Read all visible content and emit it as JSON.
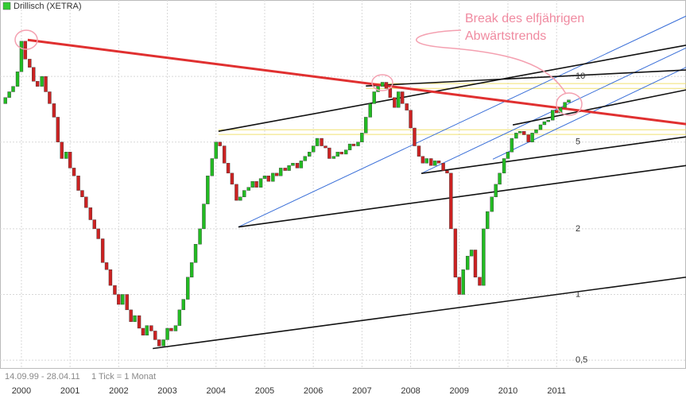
{
  "chart_data": {
    "type": "candlestick",
    "legend": "Drillisch (XETRA)",
    "legend_color": "#33cc33",
    "annotation": [
      "Break des elfjährigen",
      "Abwärtstrends"
    ],
    "footer": [
      "14.09.99 - 28.04.11",
      "1 Tick = 1 Monat"
    ],
    "log_scale": true,
    "grid": true,
    "up_color": "#22bb22",
    "down_color": "#cc2222",
    "xlim": [
      1999.56,
      2013.66
    ],
    "xticks": [
      2000,
      2001,
      2002,
      2003,
      2004,
      2005,
      2006,
      2007,
      2008,
      2009,
      2010,
      2011
    ],
    "ylim": [
      0.46,
      20.6
    ],
    "yticks": [
      {
        "value": 0.5,
        "label": "0,5"
      },
      1,
      2,
      5,
      10
    ],
    "x": [
      1999.67,
      1999.75,
      1999.83,
      1999.92,
      2000,
      2000.08,
      2000.17,
      2000.25,
      2000.33,
      2000.42,
      2000.5,
      2000.58,
      2000.67,
      2000.75,
      2000.83,
      2000.92,
      2001,
      2001.08,
      2001.17,
      2001.25,
      2001.33,
      2001.42,
      2001.5,
      2001.58,
      2001.67,
      2001.75,
      2001.83,
      2001.92,
      2002,
      2002.08,
      2002.17,
      2002.25,
      2002.33,
      2002.42,
      2002.5,
      2002.58,
      2002.67,
      2002.75,
      2002.83,
      2002.92,
      2003,
      2003.08,
      2003.17,
      2003.25,
      2003.33,
      2003.42,
      2003.5,
      2003.58,
      2003.67,
      2003.75,
      2003.83,
      2003.92,
      2004,
      2004.08,
      2004.17,
      2004.25,
      2004.33,
      2004.42,
      2004.5,
      2004.58,
      2004.67,
      2004.75,
      2004.83,
      2004.92,
      2005,
      2005.08,
      2005.17,
      2005.25,
      2005.33,
      2005.42,
      2005.5,
      2005.58,
      2005.67,
      2005.75,
      2005.83,
      2005.92,
      2006,
      2006.08,
      2006.17,
      2006.25,
      2006.33,
      2006.42,
      2006.5,
      2006.58,
      2006.67,
      2006.75,
      2006.83,
      2006.92,
      2007,
      2007.08,
      2007.17,
      2007.25,
      2007.33,
      2007.42,
      2007.5,
      2007.58,
      2007.67,
      2007.75,
      2007.83,
      2007.92,
      2008,
      2008.08,
      2008.17,
      2008.25,
      2008.33,
      2008.42,
      2008.5,
      2008.58,
      2008.67,
      2008.75,
      2008.83,
      2008.92,
      2009,
      2009.08,
      2009.17,
      2009.25,
      2009.33,
      2009.42,
      2009.5,
      2009.58,
      2009.67,
      2009.75,
      2009.83,
      2009.92,
      2010,
      2010.08,
      2010.17,
      2010.25,
      2010.33,
      2010.42,
      2010.5,
      2010.58,
      2010.67,
      2010.75,
      2010.83,
      2010.92,
      2011,
      2011.08,
      2011.17,
      2011.25
    ],
    "open": [
      7.5,
      8.0,
      8.5,
      9.0,
      10.5,
      14.5,
      12.0,
      11.0,
      9.5,
      9.0,
      10.0,
      8.5,
      7.5,
      6.5,
      5.0,
      4.2,
      4.5,
      3.8,
      3.5,
      3.0,
      2.8,
      2.5,
      2.2,
      2.0,
      1.8,
      1.4,
      1.3,
      1.1,
      1.0,
      0.9,
      1.0,
      0.85,
      0.75,
      0.8,
      0.7,
      0.65,
      0.72,
      0.68,
      0.62,
      0.58,
      0.62,
      0.7,
      0.68,
      0.72,
      0.85,
      0.95,
      1.2,
      1.4,
      1.7,
      2.0,
      2.6,
      3.5,
      4.2,
      5.0,
      4.8,
      4.0,
      3.6,
      3.2,
      2.7,
      2.8,
      3.0,
      3.1,
      3.3,
      3.1,
      3.4,
      3.5,
      3.3,
      3.6,
      3.5,
      3.8,
      3.7,
      3.9,
      4.0,
      3.8,
      4.1,
      4.3,
      4.5,
      4.8,
      5.2,
      4.8,
      4.7,
      4.2,
      4.3,
      4.5,
      4.4,
      4.6,
      4.9,
      4.8,
      5.0,
      5.5,
      6.5,
      7.5,
      8.5,
      9.0,
      9.4,
      8.8,
      8.0,
      7.2,
      8.5,
      7.5,
      7.0,
      5.8,
      4.8,
      4.3,
      4.0,
      4.2,
      3.9,
      4.1,
      4.0,
      3.7,
      3.6,
      2.0,
      1.2,
      1.0,
      1.3,
      1.5,
      1.6,
      1.2,
      1.1,
      2.0,
      2.4,
      2.8,
      3.2,
      3.6,
      4.2,
      4.5,
      5.2,
      5.5,
      5.6,
      5.4,
      5.0,
      5.5,
      5.7,
      6.0,
      6.2,
      6.3,
      7.0,
      6.8,
      7.2,
      7.6
    ],
    "close": [
      8.0,
      8.5,
      9.0,
      10.5,
      14.5,
      12.0,
      11.0,
      9.5,
      9.0,
      10.0,
      8.5,
      7.5,
      6.5,
      5.0,
      4.2,
      4.5,
      3.8,
      3.5,
      3.0,
      2.8,
      2.5,
      2.2,
      2.0,
      1.8,
      1.4,
      1.3,
      1.1,
      1.0,
      0.9,
      1.0,
      0.85,
      0.75,
      0.8,
      0.7,
      0.65,
      0.72,
      0.68,
      0.62,
      0.58,
      0.62,
      0.7,
      0.68,
      0.72,
      0.85,
      0.95,
      1.2,
      1.4,
      1.7,
      2.0,
      2.6,
      3.5,
      4.2,
      5.0,
      4.8,
      4.0,
      3.6,
      3.2,
      2.7,
      2.8,
      3.0,
      3.1,
      3.3,
      3.1,
      3.4,
      3.5,
      3.3,
      3.6,
      3.5,
      3.8,
      3.7,
      3.9,
      4.0,
      3.8,
      4.1,
      4.3,
      4.5,
      4.8,
      5.2,
      4.8,
      4.7,
      4.2,
      4.3,
      4.5,
      4.4,
      4.6,
      4.9,
      4.8,
      5.0,
      5.5,
      6.5,
      7.5,
      8.5,
      9.0,
      9.4,
      8.8,
      8.0,
      7.2,
      8.5,
      7.5,
      7.0,
      5.8,
      4.8,
      4.3,
      4.0,
      4.2,
      3.9,
      4.1,
      4.0,
      3.7,
      3.6,
      2.0,
      1.2,
      1.0,
      1.3,
      1.5,
      1.6,
      1.2,
      1.1,
      2.0,
      2.4,
      2.8,
      3.2,
      3.6,
      4.2,
      4.5,
      5.2,
      5.5,
      5.6,
      5.4,
      5.0,
      5.5,
      5.7,
      6.0,
      6.2,
      6.3,
      7.0,
      6.8,
      7.2,
      7.6,
      7.8
    ],
    "lines": [
      {
        "color": "#f0e070",
        "x": [
          2007.08,
          2013.66
        ],
        "y": [
          9.27,
          9.27
        ]
      },
      {
        "color": "#f0e070",
        "x": [
          2007.08,
          2013.66
        ],
        "y": [
          8.81,
          8.81
        ]
      },
      {
        "color": "#f0e070",
        "x": [
          2004.05,
          2013.66
        ],
        "y": [
          5.69,
          5.69
        ]
      },
      {
        "color": "#f0e070",
        "x": [
          2004.05,
          2013.66
        ],
        "y": [
          5.42,
          5.42
        ]
      },
      {
        "color": "#3a6fd8",
        "x": [
          2004.46,
          2013.66
        ],
        "y": [
          2.04,
          18.9
        ]
      },
      {
        "color": "#3a6fd8",
        "x": [
          2008.22,
          2013.66
        ],
        "y": [
          3.59,
          13.5
        ]
      },
      {
        "color": "#3a6fd8",
        "x": [
          2009.69,
          2013.66
        ],
        "y": [
          4.17,
          11.0
        ]
      },
      {
        "color": "#111111",
        "x": [
          2002.7,
          2013.66
        ],
        "y": [
          0.565,
          1.2
        ]
      },
      {
        "color": "#111111",
        "x": [
          2004.46,
          2013.66
        ],
        "y": [
          2.04,
          3.9
        ]
      },
      {
        "color": "#111111",
        "x": [
          2008.22,
          2013.66
        ],
        "y": [
          3.59,
          5.28
        ]
      },
      {
        "color": "#111111",
        "x": [
          2004.05,
          2013.66
        ],
        "y": [
          5.6,
          13.9
        ]
      },
      {
        "color": "#111111",
        "x": [
          2007.08,
          2013.66
        ],
        "y": [
          9.04,
          10.7
        ]
      },
      {
        "color": "#111111",
        "x": [
          2010.1,
          2013.66
        ],
        "y": [
          5.99,
          8.67
        ]
      },
      {
        "color": "#e03030",
        "x": [
          2000.13,
          2013.66
        ],
        "y": [
          14.7,
          6.04
        ]
      }
    ]
  }
}
